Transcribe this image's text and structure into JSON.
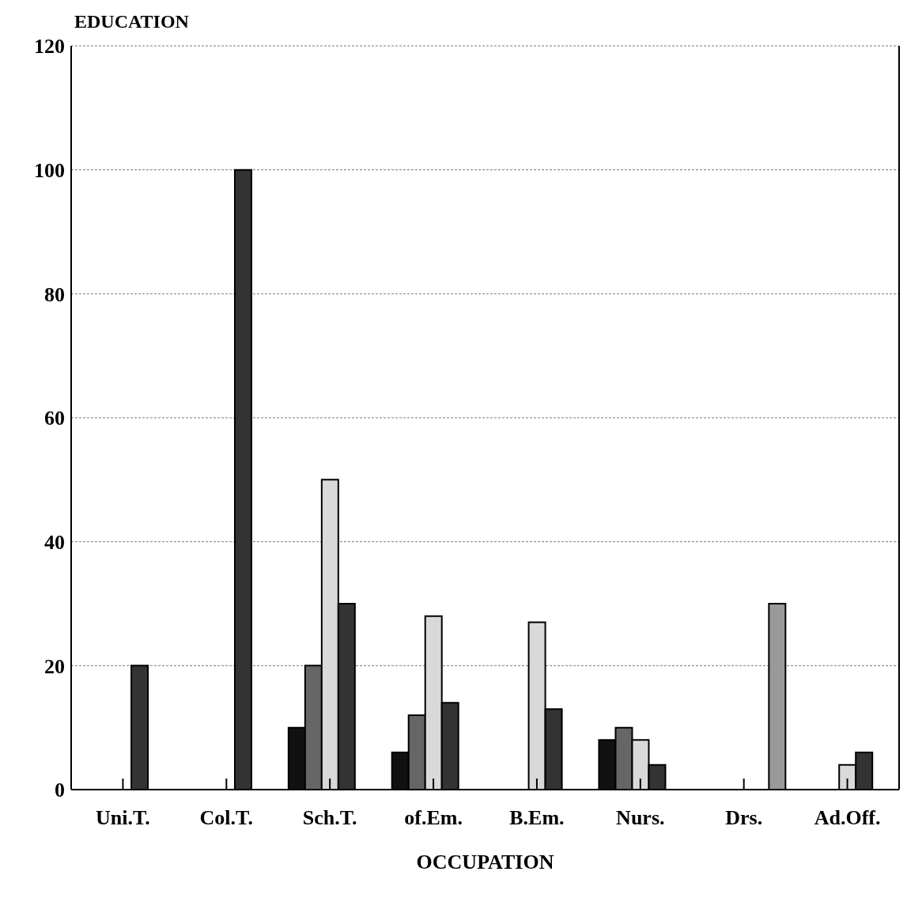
{
  "chart_data": {
    "type": "bar",
    "xlabel": "OCCUPATION",
    "ylabel": "EDUCATION",
    "categories": [
      "Uni.T.",
      "Col.T.",
      "Sch.T.",
      "of.Em.",
      "B.Em.",
      "Nurs.",
      "Drs.",
      "Ad.Off."
    ],
    "series": [
      {
        "color": "#111111",
        "values": [
          null,
          null,
          10,
          6,
          null,
          8,
          null,
          null
        ]
      },
      {
        "color": "#666666",
        "values": [
          null,
          null,
          20,
          12,
          null,
          10,
          null,
          null
        ]
      },
      {
        "color": "#d9d9d9",
        "values": [
          null,
          null,
          50,
          28,
          27,
          8,
          null,
          4
        ]
      },
      {
        "color": "#333333",
        "values": [
          20,
          100,
          30,
          14,
          13,
          4,
          null,
          6
        ]
      },
      {
        "color": "#999999",
        "values": [
          null,
          null,
          null,
          null,
          null,
          null,
          30,
          null
        ]
      }
    ],
    "ylim": [
      0,
      120
    ],
    "yticks": [
      0,
      20,
      40,
      60,
      80,
      100,
      120
    ],
    "grid": "y",
    "legend": false
  }
}
